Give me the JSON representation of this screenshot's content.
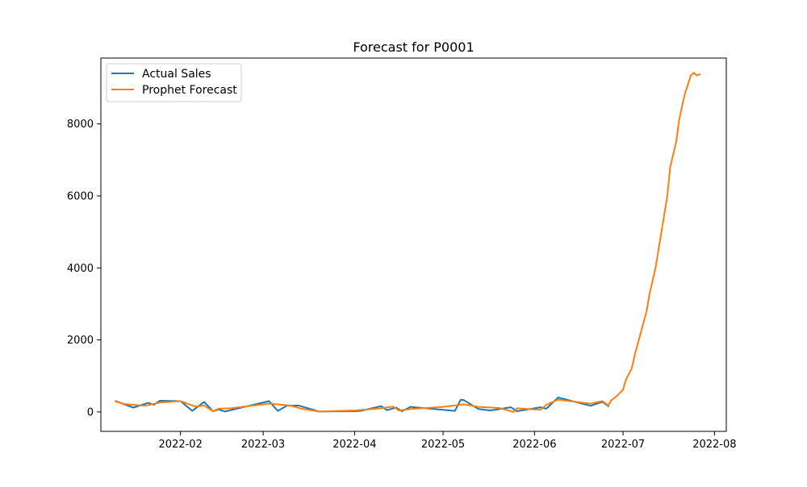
{
  "chart_data": {
    "type": "line",
    "title": "Forecast for P0001",
    "xlabel": "",
    "ylabel": "",
    "x_type": "date",
    "xlim": [
      "2022-01-05",
      "2022-08-05"
    ],
    "ylim": [
      -540,
      9830
    ],
    "x_ticks": [
      {
        "date": "2022-02-01",
        "label": "2022-02"
      },
      {
        "date": "2022-03-01",
        "label": "2022-03"
      },
      {
        "date": "2022-04-01",
        "label": "2022-04"
      },
      {
        "date": "2022-05-01",
        "label": "2022-05"
      },
      {
        "date": "2022-06-01",
        "label": "2022-06"
      },
      {
        "date": "2022-07-01",
        "label": "2022-07"
      },
      {
        "date": "2022-08-01",
        "label": "2022-08"
      }
    ],
    "y_ticks": [
      {
        "value": 0,
        "label": "0"
      },
      {
        "value": 2000,
        "label": "2000"
      },
      {
        "value": 4000,
        "label": "4000"
      },
      {
        "value": 6000,
        "label": "6000"
      },
      {
        "value": 8000,
        "label": "8000"
      }
    ],
    "grid": false,
    "legend_position": "top-left",
    "series": [
      {
        "name": "Actual Sales",
        "color": "#1f77b4",
        "points": [
          [
            "2022-01-10",
            300
          ],
          [
            "2022-01-16",
            120
          ],
          [
            "2022-01-21",
            250
          ],
          [
            "2022-01-23",
            200
          ],
          [
            "2022-01-25",
            310
          ],
          [
            "2022-02-01",
            300
          ],
          [
            "2022-02-05",
            30
          ],
          [
            "2022-02-09",
            280
          ],
          [
            "2022-02-12",
            20
          ],
          [
            "2022-02-14",
            70
          ],
          [
            "2022-02-16",
            10
          ],
          [
            "2022-03-03",
            300
          ],
          [
            "2022-03-06",
            30
          ],
          [
            "2022-03-09",
            170
          ],
          [
            "2022-03-13",
            180
          ],
          [
            "2022-03-20",
            10
          ],
          [
            "2022-04-01",
            20
          ],
          [
            "2022-04-03",
            30
          ],
          [
            "2022-04-10",
            160
          ],
          [
            "2022-04-12",
            50
          ],
          [
            "2022-04-15",
            120
          ],
          [
            "2022-04-17",
            20
          ],
          [
            "2022-04-20",
            140
          ],
          [
            "2022-05-05",
            30
          ],
          [
            "2022-05-07",
            340
          ],
          [
            "2022-05-08",
            330
          ],
          [
            "2022-05-13",
            80
          ],
          [
            "2022-05-17",
            40
          ],
          [
            "2022-05-24",
            130
          ],
          [
            "2022-05-26",
            20
          ],
          [
            "2022-06-03",
            130
          ],
          [
            "2022-06-05",
            90
          ],
          [
            "2022-06-09",
            400
          ],
          [
            "2022-06-20",
            170
          ],
          [
            "2022-06-24",
            280
          ],
          [
            "2022-06-26",
            160
          ]
        ]
      },
      {
        "name": "Prophet Forecast",
        "color": "#ff7f0e",
        "points": [
          [
            "2022-01-10",
            290
          ],
          [
            "2022-01-13",
            220
          ],
          [
            "2022-01-20",
            170
          ],
          [
            "2022-01-25",
            260
          ],
          [
            "2022-02-01",
            300
          ],
          [
            "2022-02-06",
            150
          ],
          [
            "2022-02-09",
            180
          ],
          [
            "2022-02-12",
            20
          ],
          [
            "2022-02-14",
            90
          ],
          [
            "2022-02-18",
            100
          ],
          [
            "2022-03-03",
            230
          ],
          [
            "2022-03-10",
            180
          ],
          [
            "2022-03-14",
            90
          ],
          [
            "2022-03-20",
            10
          ],
          [
            "2022-04-01",
            40
          ],
          [
            "2022-04-10",
            100
          ],
          [
            "2022-04-14",
            150
          ],
          [
            "2022-04-16",
            40
          ],
          [
            "2022-04-20",
            80
          ],
          [
            "2022-05-01",
            140
          ],
          [
            "2022-05-08",
            210
          ],
          [
            "2022-05-13",
            140
          ],
          [
            "2022-05-20",
            110
          ],
          [
            "2022-05-25",
            0
          ],
          [
            "2022-05-26",
            100
          ],
          [
            "2022-06-03",
            60
          ],
          [
            "2022-06-05",
            200
          ],
          [
            "2022-06-09",
            340
          ],
          [
            "2022-06-20",
            230
          ],
          [
            "2022-06-24",
            300
          ],
          [
            "2022-06-26",
            180
          ],
          [
            "2022-06-27",
            320
          ],
          [
            "2022-06-29",
            450
          ],
          [
            "2022-07-01",
            620
          ],
          [
            "2022-07-02",
            900
          ],
          [
            "2022-07-04",
            1220
          ],
          [
            "2022-07-05",
            1600
          ],
          [
            "2022-07-07",
            2200
          ],
          [
            "2022-07-09",
            2800
          ],
          [
            "2022-07-10",
            3300
          ],
          [
            "2022-07-12",
            4000
          ],
          [
            "2022-07-14",
            5000
          ],
          [
            "2022-07-16",
            6000
          ],
          [
            "2022-07-17",
            6800
          ],
          [
            "2022-07-19",
            7500
          ],
          [
            "2022-07-20",
            8100
          ],
          [
            "2022-07-21",
            8500
          ],
          [
            "2022-07-22",
            8850
          ],
          [
            "2022-07-23",
            9100
          ],
          [
            "2022-07-24",
            9350
          ],
          [
            "2022-07-25",
            9420
          ],
          [
            "2022-07-26",
            9350
          ],
          [
            "2022-07-27",
            9380
          ]
        ]
      }
    ]
  }
}
